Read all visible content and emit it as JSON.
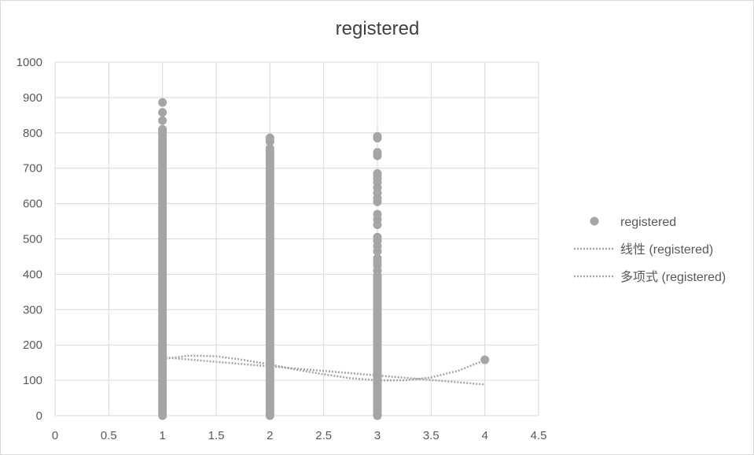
{
  "chart_data": {
    "type": "scatter",
    "title": "registered",
    "xlabel": "",
    "ylabel": "",
    "xlim": [
      0,
      4.5
    ],
    "ylim": [
      0,
      1000
    ],
    "x_ticks": [
      "0",
      "0.5",
      "1",
      "1.5",
      "2",
      "2.5",
      "3",
      "3.5",
      "4",
      "4.5"
    ],
    "y_ticks": [
      "0",
      "100",
      "200",
      "300",
      "400",
      "500",
      "600",
      "700",
      "800",
      "900",
      "1000"
    ],
    "grid": true,
    "legend_position": "right",
    "series": [
      {
        "name": "registered",
        "kind": "points",
        "color": "#a5a5a5",
        "columns": [
          {
            "x": 1,
            "dense_range": [
              0,
              815
            ],
            "extra_y": [
              835,
              858,
              886
            ]
          },
          {
            "x": 2,
            "dense_range": [
              0,
              760
            ],
            "extra_y": [
              775,
              780,
              786
            ]
          },
          {
            "x": 3,
            "dense_range": [
              0,
              400
            ],
            "extra_y": [
              410,
              425,
              435,
              445,
              465,
              480,
              495,
              505,
              540,
              555,
              570,
              605,
              615,
              630,
              645,
              660,
              670,
              680,
              685,
              735,
              745,
              785,
              790
            ]
          }
        ],
        "points": [
          {
            "x": 4,
            "y": 158
          }
        ]
      },
      {
        "name": "线性 (registered)",
        "kind": "trendline-linear",
        "color": "#a5a5a5",
        "points": [
          {
            "x": 1,
            "y": 165
          },
          {
            "x": 4,
            "y": 88
          }
        ]
      },
      {
        "name": "多项式 (registered)",
        "kind": "trendline-polynomial",
        "color": "#a5a5a5",
        "points": [
          {
            "x": 1,
            "y": 160
          },
          {
            "x": 1.25,
            "y": 170
          },
          {
            "x": 1.5,
            "y": 168
          },
          {
            "x": 1.75,
            "y": 158
          },
          {
            "x": 2,
            "y": 145
          },
          {
            "x": 2.25,
            "y": 130
          },
          {
            "x": 2.5,
            "y": 117
          },
          {
            "x": 2.75,
            "y": 106
          },
          {
            "x": 3,
            "y": 100
          },
          {
            "x": 3.25,
            "y": 100
          },
          {
            "x": 3.5,
            "y": 108
          },
          {
            "x": 3.75,
            "y": 127
          },
          {
            "x": 4,
            "y": 157
          }
        ]
      }
    ]
  }
}
